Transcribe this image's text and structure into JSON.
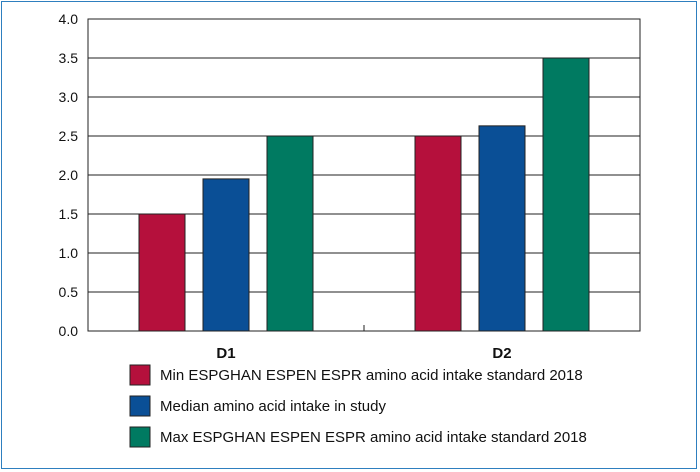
{
  "chart_data": {
    "type": "bar",
    "categories": [
      "D1",
      "D2"
    ],
    "series": [
      {
        "name": "Min ESPGHAN ESPEN ESPR amino acid intake standard 2018",
        "values": [
          1.5,
          2.5
        ],
        "color": "#b5103c"
      },
      {
        "name": "Median amino acid intake in study",
        "values": [
          1.95,
          2.63
        ],
        "color": "#0a4f96"
      },
      {
        "name": "Max ESPGHAN ESPEN ESPR amino acid intake standard 2018",
        "values": [
          2.5,
          3.5
        ],
        "color": "#007a61"
      }
    ],
    "ylim": [
      0,
      4.0
    ],
    "yticks": [
      "0.0",
      "0.5",
      "1.0",
      "1.5",
      "2.0",
      "2.5",
      "3.0",
      "3.5",
      "4.0"
    ],
    "grid": true,
    "legend_position": "bottom"
  }
}
